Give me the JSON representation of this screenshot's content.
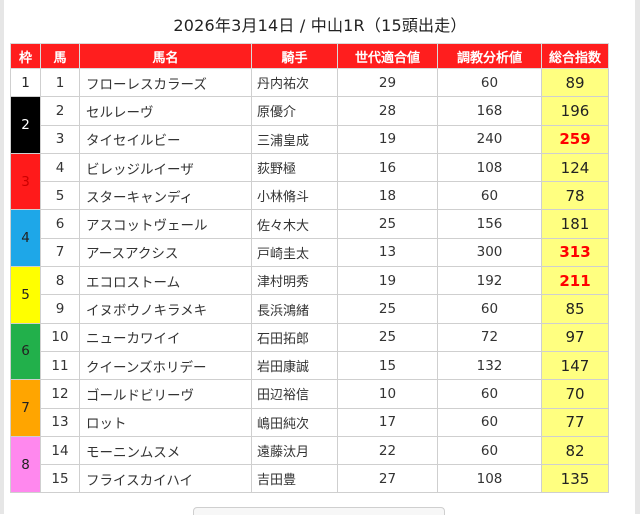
{
  "title": "2026年3月14日 / 中山1R（15頭出走）",
  "headers": [
    "枠",
    "馬",
    "馬名",
    "騎手",
    "世代適合値",
    "調教分析値",
    "総合指数"
  ],
  "waku": [
    {
      "label": "1",
      "color": "#ffffff",
      "text_color": "#222222"
    },
    {
      "label": "2",
      "color": "#000000",
      "text_color": "#ffffff"
    },
    {
      "label": "3",
      "color": "#ff1a1a",
      "text_color": "#cc0000"
    },
    {
      "label": "4",
      "color": "#1ea7e8",
      "text_color": "#222222"
    },
    {
      "label": "5",
      "color": "#ffff00",
      "text_color": "#222222"
    },
    {
      "label": "6",
      "color": "#22b04b",
      "text_color": "#222222"
    },
    {
      "label": "7",
      "color": "#ffa500",
      "text_color": "#222222"
    },
    {
      "label": "8",
      "color": "#ff88ee",
      "text_color": "#222222"
    }
  ],
  "rows": [
    {
      "waku": 1,
      "num": "1",
      "name": "フローレスカラーズ",
      "jockey": "丹内祐次",
      "gen": "29",
      "train": "60",
      "score": "89",
      "highlight": false
    },
    {
      "waku": 2,
      "num": "2",
      "name": "セルレーヴ",
      "jockey": "原優介",
      "gen": "28",
      "train": "168",
      "score": "196",
      "highlight": false
    },
    {
      "waku": 2,
      "num": "3",
      "name": "タイセイルビー",
      "jockey": "三浦皇成",
      "gen": "19",
      "train": "240",
      "score": "259",
      "highlight": true
    },
    {
      "waku": 3,
      "num": "4",
      "name": "ビレッジルイーザ",
      "jockey": "荻野極",
      "gen": "16",
      "train": "108",
      "score": "124",
      "highlight": false
    },
    {
      "waku": 3,
      "num": "5",
      "name": "スターキャンディ",
      "jockey": "小林脩斗",
      "gen": "18",
      "train": "60",
      "score": "78",
      "highlight": false
    },
    {
      "waku": 4,
      "num": "6",
      "name": "アスコットヴェール",
      "jockey": "佐々木大",
      "gen": "25",
      "train": "156",
      "score": "181",
      "highlight": false
    },
    {
      "waku": 4,
      "num": "7",
      "name": "アースアクシス",
      "jockey": "戸崎圭太",
      "gen": "13",
      "train": "300",
      "score": "313",
      "highlight": true
    },
    {
      "waku": 5,
      "num": "8",
      "name": "エコロストーム",
      "jockey": "津村明秀",
      "gen": "19",
      "train": "192",
      "score": "211",
      "highlight": true
    },
    {
      "waku": 5,
      "num": "9",
      "name": "イヌボウノキラメキ",
      "jockey": "長浜鴻緒",
      "gen": "25",
      "train": "60",
      "score": "85",
      "highlight": false
    },
    {
      "waku": 6,
      "num": "10",
      "name": "ニューカワイイ",
      "jockey": "石田拓郎",
      "gen": "25",
      "train": "72",
      "score": "97",
      "highlight": false
    },
    {
      "waku": 6,
      "num": "11",
      "name": "クイーンズホリデー",
      "jockey": "岩田康誠",
      "gen": "15",
      "train": "132",
      "score": "147",
      "highlight": false
    },
    {
      "waku": 7,
      "num": "12",
      "name": "ゴールドビリーヴ",
      "jockey": "田辺裕信",
      "gen": "10",
      "train": "60",
      "score": "70",
      "highlight": false
    },
    {
      "waku": 7,
      "num": "13",
      "name": "ロット",
      "jockey": "嶋田純次",
      "gen": "17",
      "train": "60",
      "score": "77",
      "highlight": false
    },
    {
      "waku": 8,
      "num": "14",
      "name": "モーニンムスメ",
      "jockey": "遠藤汰月",
      "gen": "22",
      "train": "60",
      "score": "82",
      "highlight": false
    },
    {
      "waku": 8,
      "num": "15",
      "name": "フライスカイハイ",
      "jockey": "吉田豊",
      "gen": "27",
      "train": "108",
      "score": "135",
      "highlight": false
    }
  ],
  "colors": {
    "header_bg": "#ff1e1e",
    "score_bg": "#ffff80",
    "highlight_text": "#ff0000"
  }
}
